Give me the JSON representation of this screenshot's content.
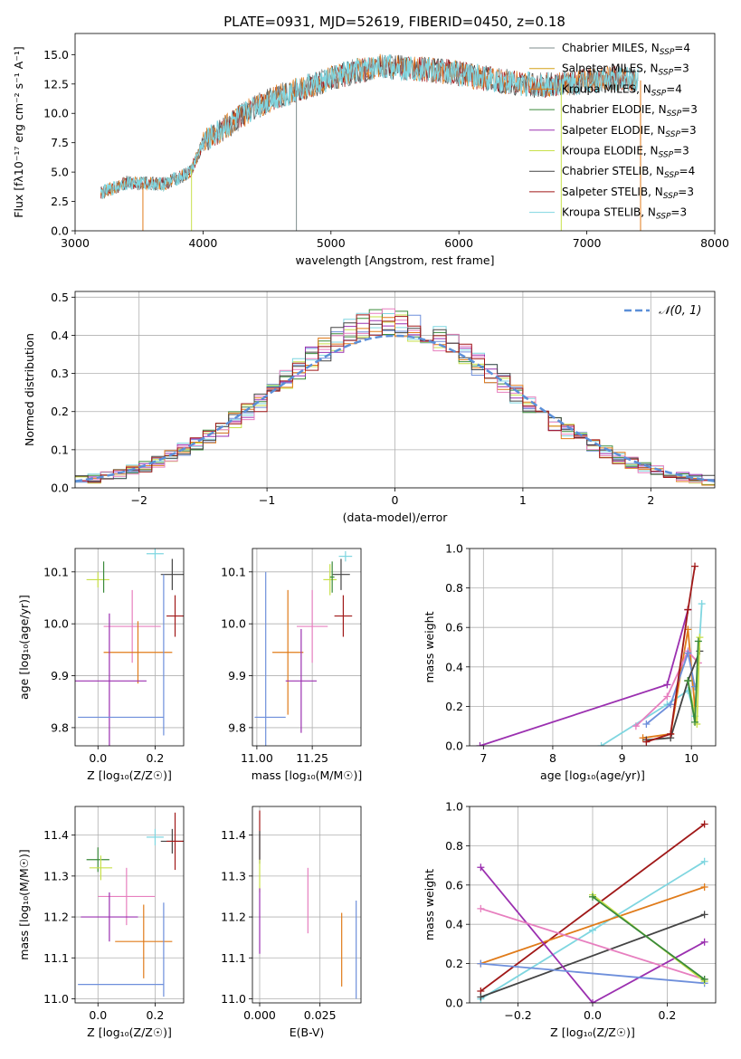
{
  "figure": {
    "title": "PLATE=0931, MJD=52619, FIBERID=0450, z=0.18"
  },
  "colors": {
    "chabrier_miles": "#7f8c8d",
    "salpeter_miles": "#d4a017",
    "kroupa_miles": "#e07b1a",
    "chabrier_elodie": "#3a8a3a",
    "salpeter_elodie": "#9b30b0",
    "kroupa_elodie": "#c8e04a",
    "chabrier_stelib": "#444444",
    "salpeter_stelib": "#a01818",
    "kroupa_stelib": "#7fd6e0",
    "normal": "#5b8fd8",
    "pink": "#e77fbf",
    "blue": "#6e8fdb"
  },
  "chart_data": [
    {
      "id": "spectrum",
      "type": "line",
      "xlabel": "wavelength [Angstrom, rest frame]",
      "ylabel": "Flux [fλ10⁻¹⁷ erg cm⁻² s⁻¹ A⁻¹]",
      "xlim": [
        3000,
        8000
      ],
      "ylim": [
        0,
        16.8
      ],
      "xticks": [
        3000,
        4000,
        5000,
        6000,
        7000,
        8000
      ],
      "yticks": [
        0.0,
        2.5,
        5.0,
        7.5,
        10.0,
        12.5,
        15.0
      ],
      "legend_position": "top-right",
      "legend": [
        {
          "name": "Chabrier MILES",
          "n": "4"
        },
        {
          "name": "Salpeter MILES",
          "n": "3"
        },
        {
          "name": "Kroupa MILES",
          "n": "4"
        },
        {
          "name": "Chabrier ELODIE",
          "n": "3"
        },
        {
          "name": "Salpeter ELODIE",
          "n": "3"
        },
        {
          "name": "Kroupa ELODIE",
          "n": "3"
        },
        {
          "name": "Chabrier STELIB",
          "n": "4"
        },
        {
          "name": "Salpeter STELIB",
          "n": "3"
        },
        {
          "name": "Kroupa STELIB",
          "n": "3"
        }
      ],
      "continuum": [
        [
          3200,
          3.2
        ],
        [
          3400,
          4.1
        ],
        [
          3700,
          4.0
        ],
        [
          3900,
          5.0
        ],
        [
          4000,
          7.5
        ],
        [
          4200,
          9.0
        ],
        [
          4400,
          10.5
        ],
        [
          4600,
          11.5
        ],
        [
          4800,
          12.2
        ],
        [
          5000,
          13.0
        ],
        [
          5200,
          13.6
        ],
        [
          5400,
          14.0
        ],
        [
          5700,
          13.8
        ],
        [
          6000,
          13.4
        ],
        [
          6300,
          12.8
        ],
        [
          6600,
          12.4
        ],
        [
          6900,
          12.6
        ],
        [
          7200,
          13.0
        ],
        [
          7400,
          12.8
        ]
      ],
      "spikes": [
        {
          "x": 3530,
          "series": "kroupa_miles"
        },
        {
          "x": 3910,
          "series": "kroupa_elodie"
        },
        {
          "x": 4730,
          "series": "chabrier_miles"
        },
        {
          "x": 6800,
          "series": "kroupa_elodie"
        },
        {
          "x": 7420,
          "series": "kroupa_miles"
        }
      ]
    },
    {
      "id": "residuals",
      "type": "step",
      "xlabel": "(data-model)/error",
      "ylabel": "Normed distribution",
      "xlim": [
        -2.5,
        2.5
      ],
      "ylim": [
        0,
        0.515
      ],
      "xticks": [
        -2,
        -1,
        0,
        1,
        2
      ],
      "yticks": [
        0.0,
        0.1,
        0.2,
        0.3,
        0.4,
        0.5
      ],
      "legend_position": "top-right",
      "legend": [
        {
          "name": "𝒩(0, 1)"
        }
      ],
      "bin_edges_start": -2.5,
      "bin_width": 0.1,
      "base_hist": [
        0.022,
        0.026,
        0.03,
        0.038,
        0.045,
        0.056,
        0.068,
        0.082,
        0.1,
        0.118,
        0.135,
        0.155,
        0.178,
        0.198,
        0.222,
        0.252,
        0.285,
        0.312,
        0.338,
        0.365,
        0.388,
        0.408,
        0.425,
        0.432,
        0.44,
        0.432,
        0.418,
        0.408,
        0.395,
        0.378,
        0.352,
        0.322,
        0.298,
        0.272,
        0.246,
        0.22,
        0.196,
        0.172,
        0.15,
        0.13,
        0.112,
        0.095,
        0.08,
        0.066,
        0.054,
        0.044,
        0.036,
        0.029,
        0.024,
        0.02
      ]
    },
    {
      "id": "age_vs_Z",
      "type": "scatter",
      "xlabel": "Z [log₁₀(Z/Z☉)]",
      "ylabel": "age  [log₁₀(age/yr)]",
      "xlim": [
        -0.08,
        0.3
      ],
      "ylim": [
        9.765,
        10.145
      ],
      "xticks": [
        0.0,
        0.2
      ],
      "yticks": [
        9.8,
        9.9,
        10.0,
        10.1
      ],
      "points": [
        {
          "c": "kroupa_stelib",
          "x": 0.2,
          "y": 10.135,
          "xerr": 0.03,
          "yerr": 0.01
        },
        {
          "c": "chabrier_stelib",
          "x": 0.26,
          "y": 10.095,
          "xerr": 0.04,
          "yerr": 0.03
        },
        {
          "c": "salpeter_stelib",
          "x": 0.27,
          "y": 10.015,
          "xerr": 0.03,
          "yerr": 0.04
        },
        {
          "c": "kroupa_elodie",
          "x": 0.0,
          "y": 10.085,
          "xerr": 0.04,
          "yerr": 0.015
        },
        {
          "c": "chabrier_elodie",
          "x": 0.02,
          "y": 10.09,
          "xerr": 0.0,
          "yerr": 0.03
        },
        {
          "c": "pink",
          "x": 0.12,
          "y": 9.995,
          "xerr": 0.1,
          "yerr": 0.07
        },
        {
          "c": "kroupa_miles",
          "x": 0.14,
          "y": 9.945,
          "xerr": 0.12,
          "yerr": 0.06
        },
        {
          "c": "salpeter_elodie",
          "x": 0.04,
          "y": 9.89,
          "xerr": 0.13,
          "yerr": 0.13
        },
        {
          "c": "blue",
          "x": 0.08,
          "y": 9.82,
          "xerr": 0.15,
          "yerr": 0.0
        },
        {
          "c": "blue",
          "x": 0.23,
          "y": 9.94,
          "xerr": 0.0,
          "yerr": 0.155
        }
      ]
    },
    {
      "id": "age_vs_mass",
      "type": "scatter",
      "xlabel": "mass [log₁₀(M/M☉)]",
      "ylabel": "",
      "xlim": [
        10.98,
        11.47
      ],
      "ylim": [
        9.765,
        10.145
      ],
      "xticks": [
        11.0,
        11.25
      ],
      "yticks": [
        9.8,
        9.9,
        10.0,
        10.1
      ],
      "points": [
        {
          "c": "kroupa_stelib",
          "x": 11.4,
          "y": 10.13,
          "xerr": 0.03,
          "yerr": 0.01
        },
        {
          "c": "chabrier_stelib",
          "x": 11.38,
          "y": 10.095,
          "xerr": 0.04,
          "yerr": 0.03
        },
        {
          "c": "salpeter_stelib",
          "x": 11.39,
          "y": 10.015,
          "xerr": 0.04,
          "yerr": 0.04
        },
        {
          "c": "kroupa_elodie",
          "x": 11.33,
          "y": 10.085,
          "xerr": 0.03,
          "yerr": 0.03
        },
        {
          "c": "chabrier_elodie",
          "x": 11.34,
          "y": 10.09,
          "xerr": 0.01,
          "yerr": 0.03
        },
        {
          "c": "pink",
          "x": 11.25,
          "y": 9.995,
          "xerr": 0.07,
          "yerr": 0.07
        },
        {
          "c": "kroupa_miles",
          "x": 11.14,
          "y": 9.945,
          "xerr": 0.07,
          "yerr": 0.12
        },
        {
          "c": "salpeter_elodie",
          "x": 11.2,
          "y": 9.89,
          "xerr": 0.07,
          "yerr": 0.1
        },
        {
          "c": "blue",
          "x": 11.04,
          "y": 9.82,
          "xerr": 0.0,
          "yerr": 0.28
        },
        {
          "c": "blue",
          "x": 11.06,
          "y": 9.82,
          "xerr": 0.07,
          "yerr": 0.0
        }
      ]
    },
    {
      "id": "weight_vs_age",
      "type": "line",
      "xlabel": "age  [log₁₀(age/yr)]",
      "ylabel": "mass weight",
      "xlim": [
        6.8,
        10.35
      ],
      "ylim": [
        0,
        1.0
      ],
      "xticks": [
        7,
        8,
        9,
        10
      ],
      "yticks": [
        0.0,
        0.2,
        0.4,
        0.6,
        0.8,
        1.0
      ],
      "series": [
        {
          "c": "salpeter_elodie",
          "x": [
            6.95,
            9.65,
            9.95
          ],
          "y": [
            0.0,
            0.31,
            0.69
          ]
        },
        {
          "c": "kroupa_stelib",
          "x": [
            8.7,
            9.65,
            9.95,
            10.05,
            10.15
          ],
          "y": [
            0.0,
            0.21,
            0.28,
            0.15,
            0.72
          ]
        },
        {
          "c": "kroupa_miles",
          "x": [
            9.3,
            9.7,
            9.95,
            10.05
          ],
          "y": [
            0.04,
            0.06,
            0.59,
            0.2
          ]
        },
        {
          "c": "pink",
          "x": [
            9.2,
            9.65,
            9.95,
            10.1
          ],
          "y": [
            0.1,
            0.25,
            0.48,
            0.42
          ]
        },
        {
          "c": "blue",
          "x": [
            9.35,
            9.7,
            9.95,
            10.05
          ],
          "y": [
            0.11,
            0.21,
            0.47,
            0.3
          ]
        },
        {
          "c": "chabrier_stelib",
          "x": [
            9.35,
            9.7,
            9.95,
            10.12
          ],
          "y": [
            0.03,
            0.04,
            0.33,
            0.48
          ]
        },
        {
          "c": "salpeter_stelib",
          "x": [
            9.35,
            9.7,
            9.95,
            10.05
          ],
          "y": [
            0.02,
            0.06,
            0.69,
            0.91
          ]
        },
        {
          "c": "kroupa_elodie",
          "x": [
            9.95,
            10.08,
            10.12
          ],
          "y": [
            0.33,
            0.11,
            0.55
          ]
        },
        {
          "c": "chabrier_elodie",
          "x": [
            9.95,
            10.05,
            10.1
          ],
          "y": [
            0.33,
            0.12,
            0.53
          ]
        }
      ]
    },
    {
      "id": "mass_vs_Z",
      "type": "scatter",
      "xlabel": "Z [log₁₀(Z/Z☉)]",
      "ylabel": "mass [log₁₀(M/M☉)]",
      "xlim": [
        -0.08,
        0.3
      ],
      "ylim": [
        10.99,
        11.47
      ],
      "xticks": [
        0.0,
        0.2
      ],
      "yticks": [
        11.0,
        11.1,
        11.2,
        11.3,
        11.4
      ],
      "points": [
        {
          "c": "kroupa_stelib",
          "x": 0.2,
          "y": 11.395,
          "xerr": 0.03,
          "yerr": 0.02
        },
        {
          "c": "chabrier_stelib",
          "x": 0.26,
          "y": 11.385,
          "xerr": 0.04,
          "yerr": 0.03
        },
        {
          "c": "salpeter_stelib",
          "x": 0.27,
          "y": 11.385,
          "xerr": 0.03,
          "yerr": 0.07
        },
        {
          "c": "chabrier_elodie",
          "x": 0.0,
          "y": 11.34,
          "xerr": 0.04,
          "yerr": 0.03
        },
        {
          "c": "kroupa_elodie",
          "x": 0.01,
          "y": 11.32,
          "xerr": 0.04,
          "yerr": 0.03
        },
        {
          "c": "pink",
          "x": 0.1,
          "y": 11.25,
          "xerr": 0.1,
          "yerr": 0.07
        },
        {
          "c": "salpeter_elodie",
          "x": 0.04,
          "y": 11.2,
          "xerr": 0.1,
          "yerr": 0.06
        },
        {
          "c": "kroupa_miles",
          "x": 0.16,
          "y": 11.14,
          "xerr": 0.1,
          "yerr": 0.09
        },
        {
          "c": "blue",
          "x": 0.08,
          "y": 11.035,
          "xerr": 0.15,
          "yerr": 0.0
        },
        {
          "c": "blue",
          "x": 0.23,
          "y": 11.12,
          "xerr": 0.0,
          "yerr": 0.115
        }
      ]
    },
    {
      "id": "mass_vs_ebv",
      "type": "scatter",
      "xlabel": "E(B-V)",
      "ylabel": "",
      "xlim": [
        -0.003,
        0.042
      ],
      "ylim": [
        10.99,
        11.47
      ],
      "xticks": [
        0.0,
        0.025
      ],
      "xtick_labels": [
        "0.000",
        "0.025"
      ],
      "yticks": [
        11.0,
        11.1,
        11.2,
        11.3,
        11.4
      ],
      "points": [
        {
          "c": "salpeter_stelib",
          "x": 0.0,
          "y": 11.4,
          "xerr": 0.0,
          "yerr": 0.06
        },
        {
          "c": "chabrier_stelib",
          "x": 0.0,
          "y": 11.37,
          "xerr": 0.0,
          "yerr": 0.04
        },
        {
          "c": "kroupa_elodie",
          "x": 0.0,
          "y": 11.3,
          "xerr": 0.0,
          "yerr": 0.04
        },
        {
          "c": "salpeter_elodie",
          "x": 0.0,
          "y": 11.19,
          "xerr": 0.0,
          "yerr": 0.08
        },
        {
          "c": "pink",
          "x": 0.02,
          "y": 11.24,
          "xerr": 0.0,
          "yerr": 0.08
        },
        {
          "c": "kroupa_miles",
          "x": 0.034,
          "y": 11.12,
          "xerr": 0.0,
          "yerr": 0.09
        },
        {
          "c": "blue",
          "x": 0.04,
          "y": 11.12,
          "xerr": 0.0,
          "yerr": 0.12
        }
      ]
    },
    {
      "id": "weight_vs_Z",
      "type": "line",
      "xlabel": "Z [log₁₀(Z/Z☉)]",
      "ylabel": "mass weight",
      "xlim": [
        -0.33,
        0.33
      ],
      "ylim": [
        0,
        1.0
      ],
      "xticks": [
        -0.2,
        0.0,
        0.2
      ],
      "xtick_labels": [
        "−0.2",
        "0.0",
        "0.2"
      ],
      "yticks": [
        0.0,
        0.2,
        0.4,
        0.6,
        0.8,
        1.0
      ],
      "series": [
        {
          "c": "salpeter_stelib",
          "x": [
            -0.3,
            0.3
          ],
          "y": [
            0.06,
            0.91
          ]
        },
        {
          "c": "kroupa_stelib",
          "x": [
            -0.3,
            0.0,
            0.3
          ],
          "y": [
            0.02,
            0.37,
            0.72
          ]
        },
        {
          "c": "kroupa_miles",
          "x": [
            -0.3,
            0.3
          ],
          "y": [
            0.2,
            0.59
          ]
        },
        {
          "c": "chabrier_stelib",
          "x": [
            -0.3,
            0.3
          ],
          "y": [
            0.03,
            0.45
          ]
        },
        {
          "c": "salpeter_elodie",
          "x": [
            -0.3,
            0.0,
            0.3
          ],
          "y": [
            0.69,
            0.0,
            0.31
          ]
        },
        {
          "c": "pink",
          "x": [
            -0.3,
            0.3
          ],
          "y": [
            0.48,
            0.12
          ]
        },
        {
          "c": "blue",
          "x": [
            -0.3,
            0.3
          ],
          "y": [
            0.2,
            0.1
          ]
        },
        {
          "c": "kroupa_elodie",
          "x": [
            0.0,
            0.3
          ],
          "y": [
            0.55,
            0.11
          ]
        },
        {
          "c": "chabrier_elodie",
          "x": [
            0.0,
            0.3
          ],
          "y": [
            0.54,
            0.12
          ]
        }
      ]
    }
  ]
}
